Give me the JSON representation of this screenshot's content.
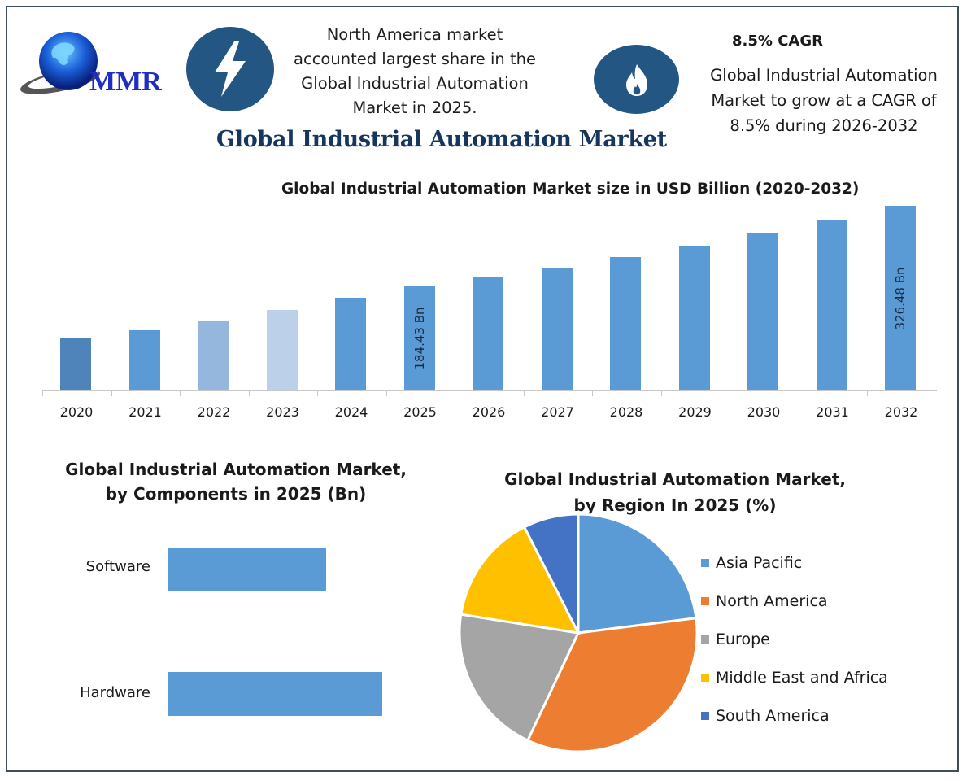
{
  "header": {
    "logo_text": "MMR",
    "icons": [
      "lightning-bolt-icon",
      "flame-icon"
    ],
    "north_america_note": [
      "North America market",
      "accounted largest share in the",
      "Global Industrial Automation",
      "Market in 2025."
    ],
    "cagr_heading": "8.5% CAGR",
    "cagr_note": [
      "Global Industrial Automation",
      "Market to grow at a CAGR of",
      "8.5% during 2026-2032"
    ],
    "main_title": "Global Industrial Automation Market"
  },
  "colors": {
    "icon_bg": "#235683",
    "title": "#17365d",
    "bar": "#5b9bd5",
    "bar_2020": "#4f84ba",
    "bar_2022": "#95b7de",
    "bar_2023": "#bcd1e9",
    "frame": "#3e4f57"
  },
  "chart_data": [
    {
      "type": "bar",
      "title": "Global Industrial Automation Market size in USD Billion (2020-2032)",
      "xlabel": "",
      "ylabel": "USD Billion",
      "categories": [
        "2020",
        "2021",
        "2022",
        "2023",
        "2024",
        "2025",
        "2026",
        "2027",
        "2028",
        "2029",
        "2030",
        "2031",
        "2032"
      ],
      "values": [
        92,
        106,
        122,
        142,
        164,
        184.43,
        200.1,
        217.1,
        235.6,
        255.6,
        277.3,
        300.9,
        326.48
      ],
      "data_labels": {
        "2025": "184.43 Bn",
        "2032": "326.48 Bn"
      },
      "ylim": [
        0,
        340
      ],
      "grid": false,
      "legend": null
    },
    {
      "type": "bar",
      "orientation": "horizontal",
      "title": "Global Industrial Automation Market, by Components in 2025 (Bn)",
      "categories": [
        "Software",
        "Hardware"
      ],
      "values": [
        70,
        95
      ],
      "grid": false,
      "legend": null
    },
    {
      "type": "pie",
      "title": "Global Industrial Automation Market, by Region In 2025 (%)",
      "categories": [
        "Asia Pacific",
        "North America",
        "Europe",
        "Middle East and Africa",
        "South America"
      ],
      "values": [
        23,
        34,
        20.5,
        15,
        7.5
      ],
      "colors": [
        "#5b9bd5",
        "#ed7d31",
        "#a5a5a5",
        "#ffc000",
        "#4472c4"
      ],
      "legend": "right"
    }
  ],
  "bar_chart": {
    "title": "Global Industrial Automation Market size in USD Billion (2020-2032)",
    "label_2025": "184.43 Bn",
    "label_2032": "326.48 Bn"
  },
  "components_chart": {
    "title_line1": "Global Industrial Automation Market,",
    "title_line2": "by Components in 2025 (Bn)",
    "software": "Software",
    "hardware": "Hardware"
  },
  "region_chart": {
    "title_line1": "Global Industrial Automation Market,",
    "title_line2": "by Region In 2025 (%)",
    "legend": [
      "Asia Pacific",
      "North America",
      "Europe",
      "Middle East and Africa",
      "South America"
    ]
  }
}
